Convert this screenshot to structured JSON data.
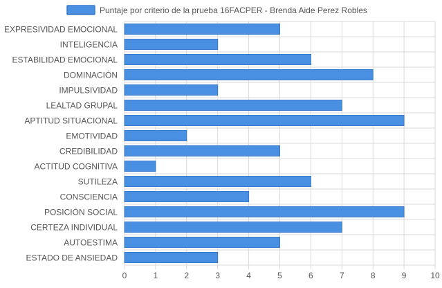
{
  "chart_data": {
    "type": "bar",
    "orientation": "horizontal",
    "title": "",
    "xlabel": "",
    "ylabel": "",
    "xlim": [
      0,
      10
    ],
    "x_ticks": [
      "0",
      "1",
      "2",
      "3",
      "4",
      "5",
      "6",
      "7",
      "8",
      "9",
      "10"
    ],
    "grid": true,
    "legend_position": "top",
    "categories": [
      "EXPRESIVIDAD EMOCIONAL",
      "INTELIGENCIA",
      "ESTABILIDAD EMOCIONAL",
      "DOMINACIÓN",
      "IMPULSIVIDAD",
      "LEALTAD GRUPAL",
      "APTITUD SITUACIONAL",
      "EMOTIVIDAD",
      "CREDIBILIDAD",
      "ACTITUD COGNITIVA",
      "SUTILEZA",
      "CONSCIENCIA",
      "POSICIÓN SOCIAL",
      "CERTEZA INDIVIDUAL",
      "AUTOESTIMA",
      "ESTADO DE ANSIEDAD"
    ],
    "series": [
      {
        "name": "Puntaje por criterio de la prueba 16FACPER - Brenda Aide Perez Robles",
        "color": "#4a90e2",
        "values": [
          5,
          3,
          6,
          8,
          3,
          7,
          9,
          2,
          5,
          1,
          6,
          4,
          9,
          7,
          5,
          3
        ]
      }
    ],
    "colors": {
      "bar": "#4a90e2",
      "bar_border": "#3a78c9",
      "grid": "#d9d9d9",
      "text": "#555555"
    }
  }
}
